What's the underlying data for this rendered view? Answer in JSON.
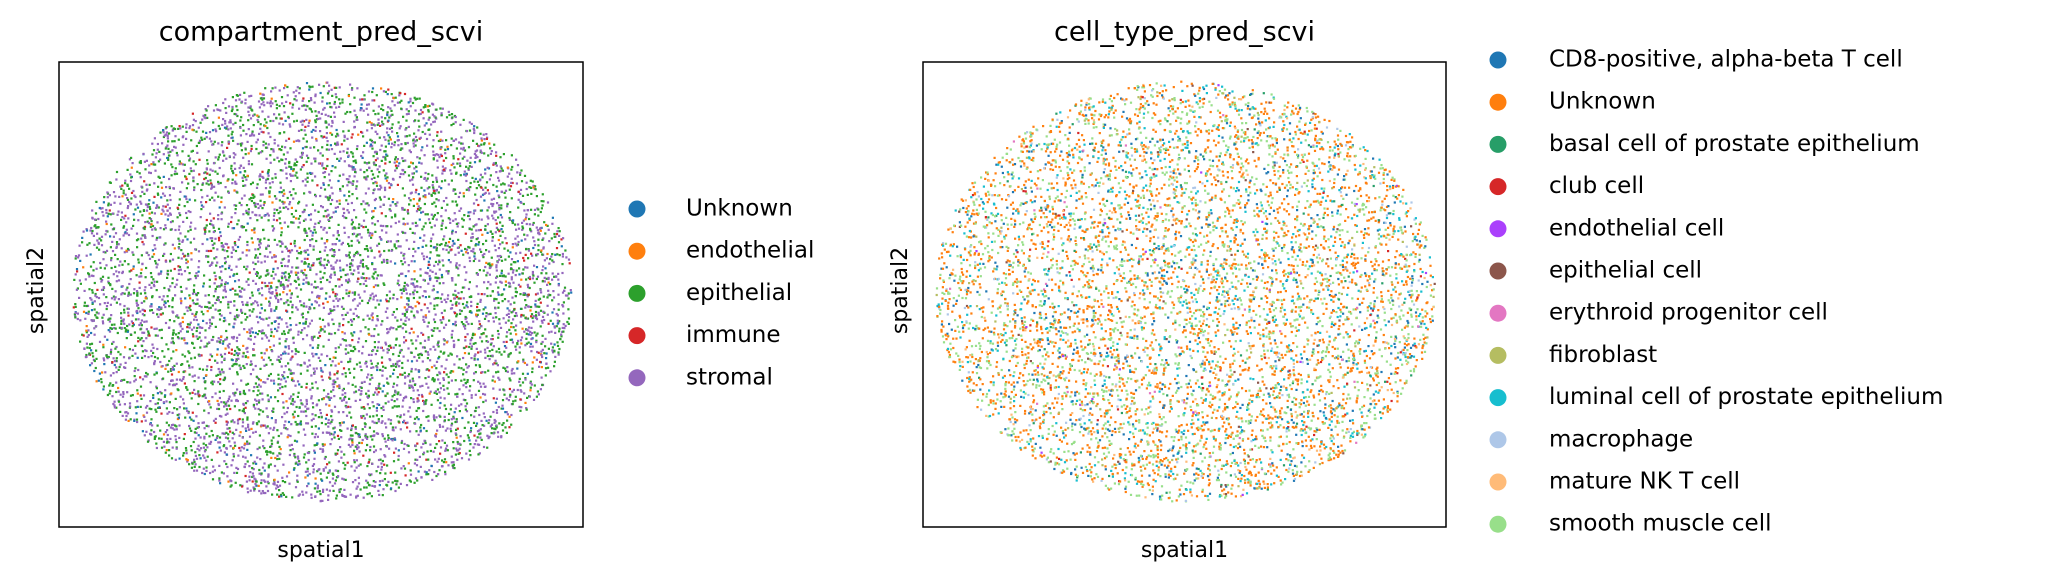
{
  "chart_data": [
    {
      "type": "scatter",
      "title": "compartment_pred_scvi",
      "xlabel": "spatial1",
      "ylabel": "spatial2",
      "series": [
        {
          "name": "Unknown",
          "color": "#1f77b4"
        },
        {
          "name": "endothelial",
          "color": "#ff7f0e"
        },
        {
          "name": "epithelial",
          "color": "#2ca02c"
        },
        {
          "name": "immune",
          "color": "#d62728"
        },
        {
          "name": "stromal",
          "color": "#9467bd"
        }
      ]
    },
    {
      "type": "scatter",
      "title": "cell_type_pred_scvi",
      "xlabel": "spatial1",
      "ylabel": "spatial2",
      "series": [
        {
          "name": "CD8-positive, alpha-beta T cell",
          "color": "#1f77b4"
        },
        {
          "name": "Unknown",
          "color": "#ff7f0e"
        },
        {
          "name": "basal cell of prostate epithelium",
          "color": "#279e68"
        },
        {
          "name": "club cell",
          "color": "#d62728"
        },
        {
          "name": "endothelial cell",
          "color": "#aa40fc"
        },
        {
          "name": "epithelial cell",
          "color": "#8c564b"
        },
        {
          "name": "erythroid progenitor cell",
          "color": "#e377c2"
        },
        {
          "name": "fibroblast",
          "color": "#b5bd61"
        },
        {
          "name": "luminal cell of prostate epithelium",
          "color": "#17becf"
        },
        {
          "name": "macrophage",
          "color": "#aec7e8"
        },
        {
          "name": "mature NK T cell",
          "color": "#ffbb78"
        },
        {
          "name": "smooth muscle cell",
          "color": "#98df8a"
        }
      ]
    }
  ]
}
